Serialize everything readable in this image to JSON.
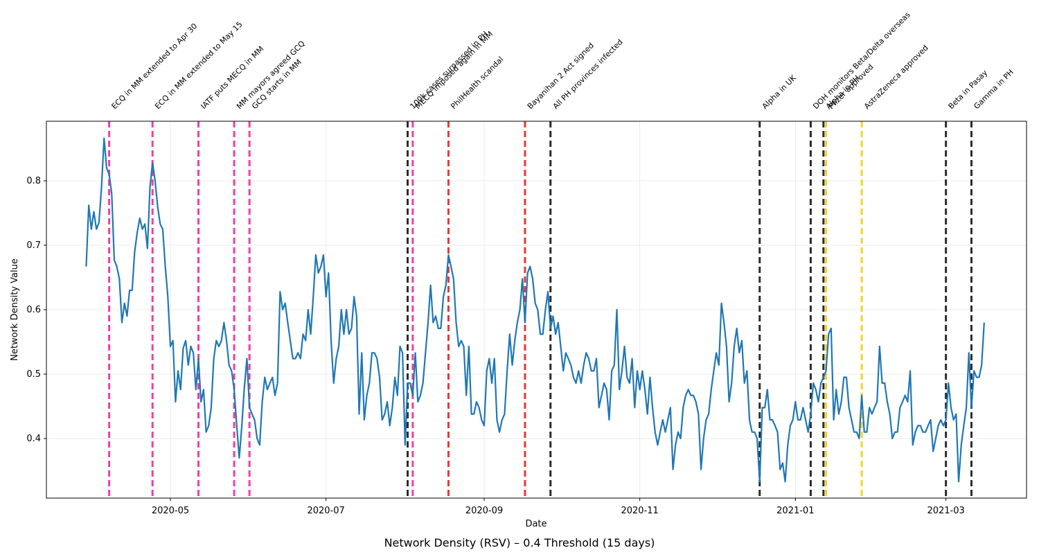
{
  "chart_data": {
    "type": "line",
    "title": "Network Density (RSV) – 0.4 Threshold (15 days)",
    "xlabel": "Date",
    "ylabel": "Network Density Value",
    "color": "#1f77b4",
    "grid": true,
    "xlim": [
      18334.4,
      18718.6
    ],
    "ylim": [
      0.3075,
      0.8925
    ],
    "xticks": [
      {
        "value": 18383,
        "label": "2020-05"
      },
      {
        "value": 18444,
        "label": "2020-07"
      },
      {
        "value": 18506,
        "label": "2020-09"
      },
      {
        "value": 18567,
        "label": "2020-11"
      },
      {
        "value": 18628,
        "label": "2021-01"
      },
      {
        "value": 18687,
        "label": "2021-03"
      }
    ],
    "yticks": [
      0.4,
      0.5,
      0.6,
      0.7,
      0.8
    ],
    "x": [
      18350,
      18351,
      18352,
      18353,
      18354,
      18355,
      18356,
      18357,
      18358,
      18359,
      18360,
      18361,
      18362,
      18363,
      18364,
      18365,
      18366,
      18367,
      18368,
      18369,
      18370,
      18371,
      18372,
      18373,
      18374,
      18375,
      18376,
      18377,
      18378,
      18379,
      18380,
      18381,
      18382,
      18383,
      18384,
      18385,
      18386,
      18387,
      18388,
      18389,
      18390,
      18391,
      18392,
      18393,
      18394,
      18395,
      18396,
      18397,
      18398,
      18399,
      18400,
      18401,
      18402,
      18403,
      18404,
      18405,
      18406,
      18407,
      18408,
      18409,
      18410,
      18411,
      18412,
      18413,
      18414,
      18415,
      18416,
      18417,
      18418,
      18419,
      18420,
      18421,
      18422,
      18423,
      18424,
      18425,
      18426,
      18427,
      18428,
      18429,
      18430,
      18431,
      18432,
      18433,
      18434,
      18435,
      18436,
      18437,
      18438,
      18439,
      18440,
      18441,
      18442,
      18443,
      18444,
      18445,
      18446,
      18447,
      18448,
      18449,
      18450,
      18451,
      18452,
      18453,
      18454,
      18455,
      18456,
      18457,
      18458,
      18459,
      18460,
      18461,
      18462,
      18463,
      18464,
      18465,
      18466,
      18467,
      18468,
      18469,
      18470,
      18471,
      18472,
      18473,
      18474,
      18475,
      18476,
      18477,
      18478,
      18479,
      18480,
      18481,
      18482,
      18483,
      18484,
      18485,
      18486,
      18487,
      18488,
      18489,
      18490,
      18491,
      18492,
      18493,
      18494,
      18495,
      18496,
      18497,
      18498,
      18499,
      18500,
      18501,
      18502,
      18503,
      18504,
      18505,
      18506,
      18507,
      18508,
      18509,
      18510,
      18511,
      18512,
      18513,
      18514,
      18515,
      18516,
      18517,
      18518,
      18519,
      18520,
      18521,
      18522,
      18523,
      18524,
      18525,
      18526,
      18527,
      18528,
      18529,
      18530,
      18531,
      18532,
      18533,
      18534,
      18535,
      18536,
      18537,
      18538,
      18539,
      18540,
      18541,
      18542,
      18543,
      18544,
      18545,
      18546,
      18547,
      18548,
      18549,
      18550,
      18551,
      18552,
      18553,
      18554,
      18555,
      18556,
      18557,
      18558,
      18559,
      18560,
      18561,
      18562,
      18563,
      18564,
      18565,
      18566,
      18567,
      18568,
      18569,
      18570,
      18571,
      18572,
      18573,
      18574,
      18575,
      18576,
      18577,
      18578,
      18579,
      18580,
      18581,
      18582,
      18583,
      18584,
      18585,
      18586,
      18587,
      18588,
      18589,
      18590,
      18591,
      18592,
      18593,
      18594,
      18595,
      18596,
      18597,
      18598,
      18599,
      18600,
      18601,
      18602,
      18603,
      18604,
      18605,
      18606,
      18607,
      18608,
      18609,
      18610,
      18611,
      18612,
      18613,
      18614,
      18615,
      18616,
      18617,
      18618,
      18619,
      18620,
      18621,
      18622,
      18623,
      18624,
      18625,
      18626,
      18627,
      18628,
      18629,
      18630,
      18631,
      18632,
      18633,
      18634,
      18635,
      18636,
      18637,
      18638,
      18639,
      18640,
      18641,
      18642,
      18643,
      18644,
      18645,
      18646,
      18647,
      18648,
      18649,
      18650,
      18651,
      18652,
      18653,
      18654,
      18655,
      18656,
      18657,
      18658,
      18659,
      18660,
      18661,
      18662,
      18663,
      18664,
      18665,
      18666,
      18667,
      18668,
      18669,
      18670,
      18671,
      18672,
      18673,
      18674,
      18675,
      18676,
      18677,
      18678,
      18679,
      18680,
      18681,
      18682,
      18683,
      18684,
      18685,
      18686,
      18687,
      18688,
      18689,
      18690,
      18691,
      18692,
      18693,
      18694,
      18695,
      18696,
      18697,
      18698,
      18699,
      18700,
      18701,
      18702
    ],
    "values": [
      0.667,
      0.762,
      0.725,
      0.752,
      0.725,
      0.735,
      0.79,
      0.866,
      0.82,
      0.81,
      0.78,
      0.677,
      0.667,
      0.648,
      0.58,
      0.61,
      0.59,
      0.63,
      0.63,
      0.69,
      0.72,
      0.742,
      0.725,
      0.733,
      0.695,
      0.79,
      0.828,
      0.8,
      0.76,
      0.733,
      0.725,
      0.667,
      0.62,
      0.543,
      0.552,
      0.457,
      0.505,
      0.476,
      0.54,
      0.552,
      0.514,
      0.543,
      0.533,
      0.476,
      0.524,
      0.457,
      0.476,
      0.41,
      0.42,
      0.448,
      0.524,
      0.552,
      0.543,
      0.552,
      0.58,
      0.552,
      0.514,
      0.505,
      0.476,
      0.42,
      0.37,
      0.42,
      0.48,
      0.524,
      0.448,
      0.438,
      0.429,
      0.4,
      0.39,
      0.457,
      0.495,
      0.476,
      0.486,
      0.495,
      0.467,
      0.486,
      0.628,
      0.6,
      0.61,
      0.58,
      0.552,
      0.524,
      0.524,
      0.533,
      0.524,
      0.562,
      0.552,
      0.6,
      0.562,
      0.62,
      0.685,
      0.657,
      0.667,
      0.685,
      0.62,
      0.657,
      0.552,
      0.486,
      0.524,
      0.543,
      0.6,
      0.562,
      0.6,
      0.562,
      0.571,
      0.62,
      0.59,
      0.438,
      0.533,
      0.429,
      0.467,
      0.486,
      0.533,
      0.533,
      0.524,
      0.495,
      0.429,
      0.438,
      0.457,
      0.42,
      0.448,
      0.495,
      0.467,
      0.543,
      0.533,
      0.39,
      0.486,
      0.486,
      0.467,
      0.533,
      0.457,
      0.467,
      0.486,
      0.533,
      0.58,
      0.638,
      0.58,
      0.59,
      0.571,
      0.571,
      0.62,
      0.638,
      0.685,
      0.667,
      0.648,
      0.58,
      0.543,
      0.552,
      0.543,
      0.467,
      0.543,
      0.438,
      0.438,
      0.457,
      0.448,
      0.429,
      0.42,
      0.505,
      0.524,
      0.486,
      0.524,
      0.429,
      0.41,
      0.429,
      0.438,
      0.505,
      0.562,
      0.514,
      0.552,
      0.58,
      0.6,
      0.648,
      0.58,
      0.657,
      0.667,
      0.648,
      0.61,
      0.6,
      0.562,
      0.562,
      0.6,
      0.628,
      0.571,
      0.59,
      0.562,
      0.58,
      0.543,
      0.505,
      0.533,
      0.524,
      0.514,
      0.495,
      0.486,
      0.505,
      0.486,
      0.514,
      0.533,
      0.524,
      0.505,
      0.505,
      0.524,
      0.448,
      0.467,
      0.486,
      0.476,
      0.429,
      0.505,
      0.514,
      0.6,
      0.476,
      0.505,
      0.543,
      0.495,
      0.486,
      0.524,
      0.448,
      0.505,
      0.476,
      0.505,
      0.476,
      0.438,
      0.495,
      0.448,
      0.41,
      0.39,
      0.41,
      0.429,
      0.41,
      0.429,
      0.448,
      0.352,
      0.39,
      0.41,
      0.4,
      0.448,
      0.467,
      0.476,
      0.467,
      0.467,
      0.457,
      0.438,
      0.352,
      0.4,
      0.429,
      0.438,
      0.476,
      0.505,
      0.533,
      0.514,
      0.61,
      0.58,
      0.543,
      0.457,
      0.486,
      0.543,
      0.571,
      0.533,
      0.552,
      0.486,
      0.505,
      0.429,
      0.41,
      0.41,
      0.4,
      0.333,
      0.448,
      0.448,
      0.476,
      0.429,
      0.429,
      0.42,
      0.41,
      0.352,
      0.362,
      0.333,
      0.39,
      0.42,
      0.429,
      0.457,
      0.429,
      0.429,
      0.448,
      0.429,
      0.41,
      0.438,
      0.486,
      0.476,
      0.457,
      0.486,
      0.495,
      0.505,
      0.562,
      0.571,
      0.429,
      0.476,
      0.438,
      0.457,
      0.495,
      0.495,
      0.448,
      0.429,
      0.41,
      0.41,
      0.4,
      0.467,
      0.41,
      0.41,
      0.448,
      0.438,
      0.448,
      0.457,
      0.543,
      0.486,
      0.486,
      0.457,
      0.438,
      0.4,
      0.41,
      0.41,
      0.448,
      0.457,
      0.467,
      0.457,
      0.505,
      0.39,
      0.41,
      0.42,
      0.42,
      0.41,
      0.41,
      0.42,
      0.429,
      0.38,
      0.4,
      0.42,
      0.429,
      0.42,
      0.429,
      0.486,
      0.448,
      0.429,
      0.438,
      0.333,
      0.39,
      0.42,
      0.448,
      0.533,
      0.448,
      0.505,
      0.495,
      0.495,
      0.514,
      0.58
    ],
    "events": [
      {
        "label": "ECQ in MM extended to Apr 30",
        "x": 18359,
        "color": "#f43ca6"
      },
      {
        "label": "ECQ in MM extended to May 15",
        "x": 18376,
        "color": "#f43ca6"
      },
      {
        "label": "IATF puts MECQ in MM",
        "x": 18394,
        "color": "#f43ca6"
      },
      {
        "label": "MM mayors agreed GCQ",
        "x": 18408,
        "color": "#f43ca6"
      },
      {
        "label": "GCQ starts in MM",
        "x": 18414,
        "color": "#f43ca6"
      },
      {
        "label": "100k cases surpassed in PH",
        "x": 18476,
        "color": "#2b2b2b"
      },
      {
        "label": "MECQ imposed again in MM",
        "x": 18478,
        "color": "#f43ca6"
      },
      {
        "label": "PhilHealth scandal",
        "x": 18492,
        "color": "#ee3333"
      },
      {
        "label": "Bayanihan 2 Act signed",
        "x": 18522,
        "color": "#ee3333"
      },
      {
        "label": "All PH provinces infected",
        "x": 18532,
        "color": "#2b2b2b"
      },
      {
        "label": "Alpha in UK",
        "x": 18614,
        "color": "#2b2b2b"
      },
      {
        "label": "DOH monitors Beta/Delta overseas",
        "x": 18634,
        "color": "#2b2b2b"
      },
      {
        "label": "Alpha in PH",
        "x": 18639,
        "color": "#2b2b2b"
      },
      {
        "label": "Pfizer approved",
        "x": 18640,
        "color": "#f5d328"
      },
      {
        "label": "AstraZeneca approved",
        "x": 18654,
        "color": "#f5d328"
      },
      {
        "label": "Beta in Pasay",
        "x": 18687,
        "color": "#2b2b2b"
      },
      {
        "label": "Gamma in PH",
        "x": 18697,
        "color": "#2b2b2b"
      }
    ]
  }
}
